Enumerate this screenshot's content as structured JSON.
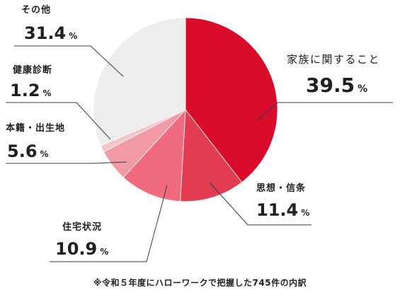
{
  "chart_data": {
    "type": "pie",
    "categories": [
      "家族に関すること",
      "思想・信条",
      "住宅状況",
      "本籍・出生地",
      "健康診断",
      "その他"
    ],
    "values": [
      39.5,
      11.4,
      10.9,
      5.6,
      1.2,
      31.4
    ],
    "unit": "%",
    "colors": [
      "#d90d2b",
      "#e23c52",
      "#f06b7d",
      "#f19aa6",
      "#f6c4cb",
      "#ededed"
    ],
    "accent_color": "#d90d2b",
    "start_angle_deg": 0,
    "direction": "clockwise",
    "legend": "none",
    "footnote": "※令和５年度にハローワークで把握した745件の内訳"
  }
}
